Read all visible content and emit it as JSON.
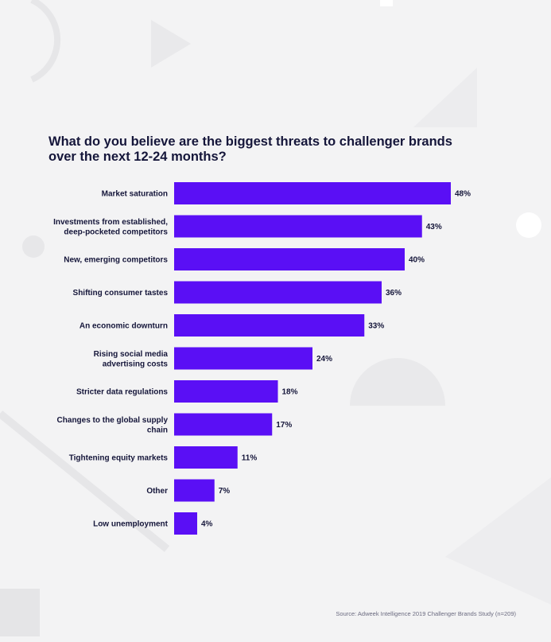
{
  "chart_data": {
    "type": "bar",
    "orientation": "horizontal",
    "title": "What do you believe are the biggest threats to challenger brands\nover the next 12-24 months?",
    "categories": [
      "Market saturation",
      "Investments from established,\ndeep-pocketed competitors",
      "New, emerging competitors",
      "Shifting consumer tastes",
      "An economic downturn",
      "Rising social media\nadvertising costs",
      "Stricter data regulations",
      "Changes to the global supply\nchain",
      "Tightening equity markets",
      "Other",
      "Low unemployment"
    ],
    "values": [
      48,
      43,
      40,
      36,
      33,
      24,
      18,
      17,
      11,
      7,
      4
    ],
    "value_labels": [
      "48%",
      "43%",
      "40%",
      "36%",
      "33%",
      "24%",
      "18%",
      "17%",
      "11%",
      "7%",
      "4%"
    ],
    "xlim": [
      0,
      48
    ],
    "grid": false,
    "legend": "none",
    "bar_color": "#5a0ff5",
    "source": "Source: Adweek Intelligence 2019 Challenger Brands Study (n=209)"
  }
}
